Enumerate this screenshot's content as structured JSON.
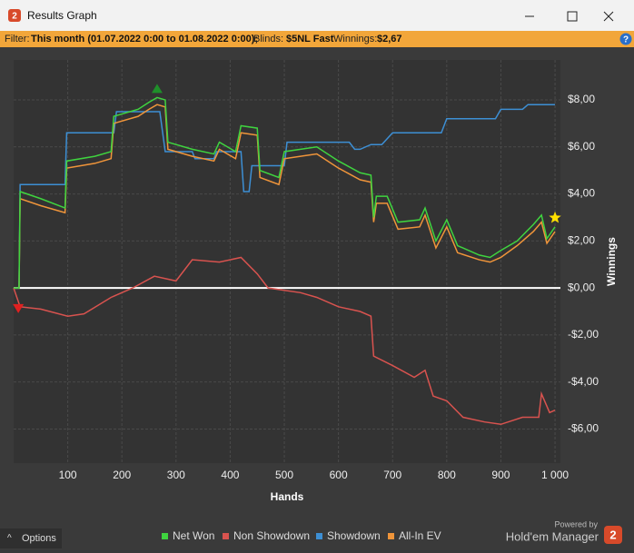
{
  "window": {
    "title": "Results Graph",
    "app_icon": "2"
  },
  "filter_bar": {
    "label": "Filter:",
    "period": "This month (01.07.2022 0:00 to 01.08.2022 0:00);",
    "blinds_label": "Blinds:",
    "blinds": "$5NL Fast",
    "winnings_label": "Winnings:",
    "winnings": "$2,67",
    "help": "?"
  },
  "footer": {
    "options": "Options",
    "powered_by": "Powered by",
    "brand": "Hold'em Manager",
    "brand_icon": "2"
  },
  "chart_data": {
    "type": "line",
    "x_label": "Hands",
    "y_label": "Winnings",
    "grid": true,
    "xlim": [
      0,
      1010
    ],
    "xticks": [
      100,
      200,
      300,
      400,
      500,
      600,
      700,
      800,
      900,
      {
        "value": 1000,
        "label": "1 000"
      }
    ],
    "ylim": [
      -7.45,
      9.7
    ],
    "yticks": [
      {
        "value": 8,
        "label": "$8,00"
      },
      {
        "value": 6,
        "label": "$6,00"
      },
      {
        "value": 4,
        "label": "$4,00"
      },
      {
        "value": 2,
        "label": "$2,00"
      },
      {
        "value": 0,
        "label": "$0,00"
      },
      {
        "value": -2,
        "label": "-$2,00"
      },
      {
        "value": -4,
        "label": "-$4,00"
      },
      {
        "value": -6,
        "label": "-$6,00"
      }
    ],
    "series": [
      {
        "name": "Net Won",
        "color": "#3fd43f",
        "x": [
          0,
          10,
          12,
          50,
          95,
          98,
          150,
          180,
          185,
          230,
          250,
          265,
          280,
          285,
          330,
          370,
          380,
          410,
          420,
          450,
          455,
          490,
          500,
          530,
          560,
          600,
          640,
          660,
          665,
          670,
          690,
          710,
          750,
          760,
          780,
          800,
          820,
          860,
          880,
          900,
          930,
          960,
          975,
          985,
          1000
        ],
        "values": [
          0,
          0,
          4.1,
          3.8,
          3.4,
          5.4,
          5.6,
          5.8,
          7.3,
          7.6,
          7.9,
          8.1,
          8.0,
          6.2,
          5.9,
          5.7,
          6.2,
          5.8,
          6.9,
          6.8,
          5.0,
          4.7,
          5.8,
          5.9,
          6.0,
          5.4,
          4.9,
          4.8,
          3.0,
          3.9,
          3.9,
          2.8,
          2.9,
          3.4,
          2.0,
          2.9,
          1.8,
          1.4,
          1.3,
          1.6,
          2.0,
          2.7,
          3.1,
          2.1,
          2.6
        ]
      },
      {
        "name": "Non Showdown",
        "color": "#d9534f",
        "x": [
          0,
          12,
          50,
          100,
          130,
          180,
          220,
          260,
          300,
          330,
          380,
          420,
          450,
          470,
          530,
          560,
          600,
          640,
          660,
          665,
          700,
          740,
          760,
          775,
          800,
          830,
          870,
          900,
          940,
          970,
          975,
          990,
          1000
        ],
        "values": [
          0,
          -0.8,
          -0.9,
          -1.2,
          -1.1,
          -0.4,
          0.0,
          0.5,
          0.3,
          1.2,
          1.1,
          1.3,
          0.6,
          0.0,
          -0.2,
          -0.4,
          -0.8,
          -1.0,
          -1.2,
          -2.9,
          -3.3,
          -3.8,
          -3.5,
          -4.6,
          -4.8,
          -5.5,
          -5.7,
          -5.8,
          -5.5,
          -5.5,
          -4.5,
          -5.3,
          -5.2
        ]
      },
      {
        "name": "Showdown",
        "color": "#3d8fd4",
        "x": [
          0,
          10,
          12,
          95,
          98,
          185,
          190,
          270,
          280,
          330,
          335,
          370,
          375,
          420,
          425,
          435,
          440,
          500,
          505,
          620,
          630,
          640,
          660,
          680,
          700,
          790,
          800,
          890,
          900,
          940,
          950,
          1000
        ],
        "values": [
          0,
          0,
          4.4,
          4.4,
          6.6,
          6.6,
          7.5,
          7.5,
          5.8,
          5.8,
          5.5,
          5.5,
          5.8,
          5.8,
          4.1,
          4.1,
          5.2,
          5.2,
          6.2,
          6.2,
          5.9,
          5.9,
          6.1,
          6.1,
          6.6,
          6.6,
          7.2,
          7.2,
          7.6,
          7.6,
          7.8,
          7.8
        ]
      },
      {
        "name": "All-In EV",
        "color": "#f0953a",
        "x": [
          0,
          10,
          12,
          50,
          95,
          98,
          150,
          180,
          185,
          230,
          250,
          265,
          280,
          285,
          330,
          370,
          380,
          410,
          420,
          450,
          455,
          490,
          500,
          530,
          560,
          600,
          640,
          660,
          665,
          670,
          690,
          710,
          750,
          760,
          780,
          800,
          820,
          860,
          880,
          900,
          930,
          960,
          975,
          985,
          1000
        ],
        "values": [
          0,
          0,
          3.8,
          3.5,
          3.2,
          5.1,
          5.3,
          5.5,
          7.0,
          7.3,
          7.6,
          7.8,
          7.7,
          5.9,
          5.6,
          5.4,
          5.9,
          5.5,
          6.6,
          6.5,
          4.7,
          4.4,
          5.5,
          5.6,
          5.7,
          5.1,
          4.6,
          4.5,
          2.8,
          3.6,
          3.6,
          2.5,
          2.6,
          3.1,
          1.7,
          2.6,
          1.5,
          1.2,
          1.1,
          1.3,
          1.8,
          2.4,
          2.8,
          1.9,
          2.4
        ]
      }
    ]
  }
}
